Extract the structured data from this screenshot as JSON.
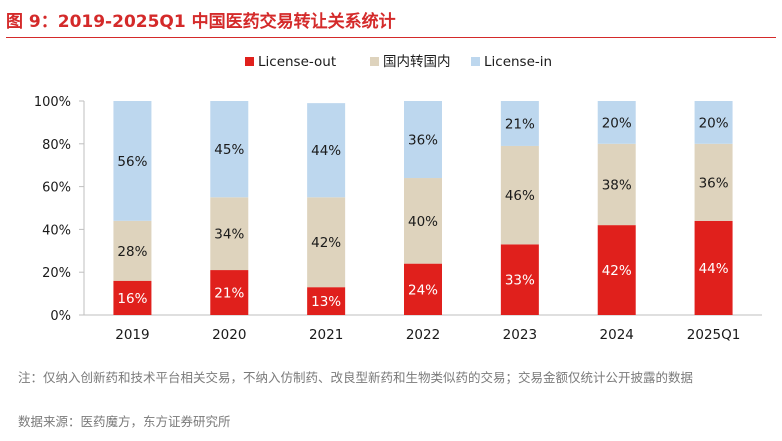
{
  "title": "图 9：2019-2025Q1 中国医药交易转让关系统计",
  "note": "注：仅纳入创新药和技术平台相关交易，不纳入仿制药、改良型新药和生物类似药的交易；交易金额仅统计公开披露的数据",
  "source": "数据来源：医药魔方，东方证券研究所",
  "colors": {
    "title": "#d42a2a",
    "license_out": "#e0201c",
    "domestic": "#ded3bd",
    "license_in": "#bdd7ee"
  },
  "chart_data": {
    "type": "bar",
    "stacked": true,
    "categories": [
      "2019",
      "2020",
      "2021",
      "2022",
      "2023",
      "2024",
      "2025Q1"
    ],
    "series": [
      {
        "name": "License-out",
        "values": [
          16,
          21,
          13,
          24,
          33,
          42,
          44
        ]
      },
      {
        "name": "国内转国内",
        "values": [
          28,
          34,
          42,
          40,
          46,
          38,
          36
        ]
      },
      {
        "name": "License-in",
        "values": [
          56,
          45,
          44,
          36,
          21,
          20,
          20
        ]
      }
    ],
    "value_labels": [
      [
        "16%",
        "21%",
        "13%",
        "24%",
        "33%",
        "42%",
        "44%"
      ],
      [
        "28%",
        "34%",
        "42%",
        "40%",
        "46%",
        "38%",
        "36%"
      ],
      [
        "56%",
        "45%",
        "44%",
        "36%",
        "21%",
        "20%",
        "20%"
      ]
    ],
    "ylim": [
      0,
      100
    ],
    "yticks": [
      "0%",
      "20%",
      "40%",
      "60%",
      "80%",
      "100%"
    ],
    "legend_position": "top-center",
    "grid": false
  }
}
